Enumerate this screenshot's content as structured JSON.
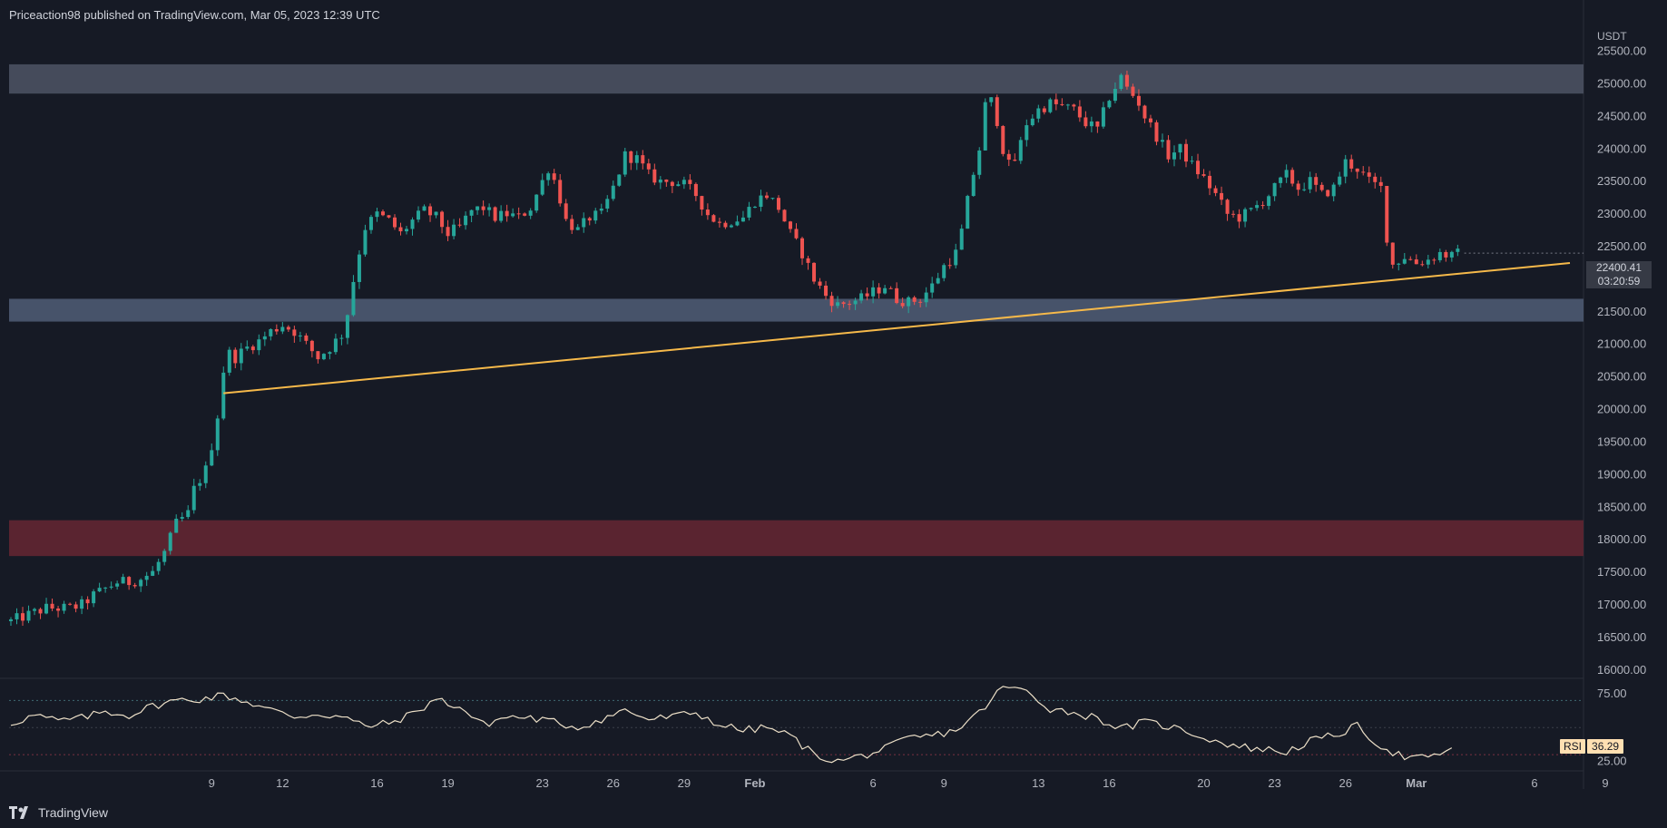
{
  "header": {
    "publisher": "Priceaction98 published on TradingView.com, Mar 05, 2023 12:39 UTC"
  },
  "footer": {
    "brand": "TradingView"
  },
  "price_axis": {
    "unit": "USDT",
    "ticks": [
      "25500.00",
      "25000.00",
      "24500.00",
      "24000.00",
      "23500.00",
      "23000.00",
      "22500.00",
      "22000.00",
      "21500.00",
      "21000.00",
      "20500.00",
      "20000.00",
      "19500.00",
      "19000.00",
      "18500.00",
      "18000.00",
      "17500.00",
      "17000.00",
      "16500.00",
      "16000.00"
    ],
    "current_price": "22400.41",
    "countdown": "03:20:59"
  },
  "rsi_axis": {
    "name": "RSI",
    "value": "36.29",
    "ticks": [
      "75.00",
      "25.00"
    ]
  },
  "time_axis": {
    "labels": [
      "9",
      "12",
      "16",
      "19",
      "23",
      "26",
      "29",
      "Feb",
      "6",
      "9",
      "13",
      "16",
      "20",
      "23",
      "26",
      "Mar",
      "6",
      "9"
    ]
  },
  "colors": {
    "background": "#161a25",
    "up_candle": "#26a69a",
    "down_candle": "#ef5350",
    "trendline": "#f6b94a",
    "resistance_zone": "#4a5162",
    "support_zone": "#4d5a72",
    "demand_zone": "#5e2530",
    "rsi_line": "#ede0c8"
  },
  "chart_data": [
    {
      "type": "candlestick",
      "xlabel": "",
      "ylabel": "",
      "ylim": [
        15900,
        25800
      ],
      "x_range_days": [
        0,
        66
      ],
      "x_ticks": [
        {
          "day": 8.5,
          "label": "9"
        },
        {
          "day": 11.5,
          "label": "12"
        },
        {
          "day": 15.5,
          "label": "16"
        },
        {
          "day": 18.5,
          "label": "19"
        },
        {
          "day": 22.5,
          "label": "23"
        },
        {
          "day": 25.5,
          "label": "26"
        },
        {
          "day": 28.5,
          "label": "29"
        },
        {
          "day": 31.5,
          "label": "Feb"
        },
        {
          "day": 36.5,
          "label": "6"
        },
        {
          "day": 39.5,
          "label": "9"
        },
        {
          "day": 43.5,
          "label": "13"
        },
        {
          "day": 46.5,
          "label": "16"
        },
        {
          "day": 50.5,
          "label": "20"
        },
        {
          "day": 53.5,
          "label": "23"
        },
        {
          "day": 56.5,
          "label": "26"
        },
        {
          "day": 59.5,
          "label": "Mar"
        },
        {
          "day": 64.5,
          "label": "6"
        },
        {
          "day": 67.5,
          "label": "9"
        }
      ],
      "path_points": [
        [
          0,
          16750
        ],
        [
          1.5,
          16950
        ],
        [
          2.5,
          16950
        ],
        [
          3,
          17000
        ],
        [
          3.5,
          17150
        ],
        [
          4.5,
          17350
        ],
        [
          5,
          17350
        ],
        [
          5.5,
          17400
        ],
        [
          6,
          17500
        ],
        [
          6.5,
          17800
        ],
        [
          7,
          18250
        ],
        [
          7.5,
          18400
        ],
        [
          7.8,
          18850
        ],
        [
          8.2,
          19000
        ],
        [
          8.5,
          19450
        ],
        [
          8.8,
          20000
        ],
        [
          9.1,
          20900
        ],
        [
          9.5,
          20800
        ],
        [
          10,
          20950
        ],
        [
          10.5,
          21050
        ],
        [
          11,
          21200
        ],
        [
          11.5,
          21300
        ],
        [
          12,
          21200
        ],
        [
          12.5,
          21000
        ],
        [
          13,
          20800
        ],
        [
          13.5,
          20950
        ],
        [
          14,
          21150
        ],
        [
          14.3,
          21550
        ],
        [
          14.6,
          22200
        ],
        [
          15,
          22800
        ],
        [
          15.5,
          23000
        ],
        [
          16,
          22900
        ],
        [
          16.5,
          22700
        ],
        [
          17,
          22900
        ],
        [
          17.5,
          23050
        ],
        [
          18,
          22950
        ],
        [
          18.5,
          22700
        ],
        [
          19,
          22800
        ],
        [
          19.5,
          23050
        ],
        [
          20,
          23100
        ],
        [
          20.5,
          22950
        ],
        [
          21,
          23000
        ],
        [
          21.5,
          22950
        ],
        [
          22,
          23100
        ],
        [
          22.5,
          23500
        ],
        [
          22.8,
          23750
        ],
        [
          23.2,
          23300
        ],
        [
          23.5,
          22900
        ],
        [
          24,
          22750
        ],
        [
          24.5,
          22950
        ],
        [
          25,
          23000
        ],
        [
          25.5,
          23400
        ],
        [
          26,
          23900
        ],
        [
          26.5,
          23850
        ],
        [
          27,
          23600
        ],
        [
          27.5,
          23500
        ],
        [
          28,
          23500
        ],
        [
          28.5,
          23450
        ],
        [
          29,
          23300
        ],
        [
          29.5,
          23000
        ],
        [
          30,
          22850
        ],
        [
          30.5,
          22900
        ],
        [
          31,
          22950
        ],
        [
          31.5,
          23200
        ],
        [
          32,
          23300
        ],
        [
          32.5,
          23100
        ],
        [
          33,
          22700
        ],
        [
          33.5,
          22400
        ],
        [
          34,
          22000
        ],
        [
          34.5,
          21750
        ],
        [
          35,
          21600
        ],
        [
          35.5,
          21650
        ],
        [
          36,
          21700
        ],
        [
          36.5,
          21800
        ],
        [
          37,
          21900
        ],
        [
          37.5,
          21700
        ],
        [
          38,
          21650
        ],
        [
          38.5,
          21700
        ],
        [
          39,
          21900
        ],
        [
          39.5,
          22200
        ],
        [
          40,
          22400
        ],
        [
          40.3,
          22800
        ],
        [
          40.6,
          23400
        ],
        [
          41,
          24000
        ],
        [
          41.3,
          24800
        ],
        [
          41.6,
          24700
        ],
        [
          42,
          24000
        ],
        [
          42.3,
          23700
        ],
        [
          42.6,
          23900
        ],
        [
          43,
          24400
        ],
        [
          43.5,
          24600
        ],
        [
          44,
          24700
        ],
        [
          44.5,
          24650
        ],
        [
          45,
          24600
        ],
        [
          45.5,
          24400
        ],
        [
          46,
          24300
        ],
        [
          46.5,
          24800
        ],
        [
          47,
          25100
        ],
        [
          47.3,
          24900
        ],
        [
          47.7,
          24750
        ],
        [
          48,
          24500
        ],
        [
          48.5,
          24200
        ],
        [
          49,
          23900
        ],
        [
          49.5,
          24000
        ],
        [
          50,
          23750
        ],
        [
          50.5,
          23550
        ],
        [
          51,
          23300
        ],
        [
          51.5,
          23000
        ],
        [
          52,
          22950
        ],
        [
          52.5,
          23050
        ],
        [
          53,
          23200
        ],
        [
          53.5,
          23400
        ],
        [
          54,
          23600
        ],
        [
          54.5,
          23400
        ],
        [
          55,
          23500
        ],
        [
          55.5,
          23300
        ],
        [
          56,
          23400
        ],
        [
          56.5,
          23800
        ],
        [
          57,
          23700
        ],
        [
          57.5,
          23500
        ],
        [
          58,
          23400
        ],
        [
          58.2,
          22800
        ],
        [
          58.4,
          22200
        ],
        [
          59,
          22350
        ],
        [
          59.5,
          22250
        ],
        [
          60,
          22300
        ],
        [
          60.5,
          22400
        ],
        [
          61,
          22350
        ],
        [
          61.3,
          22400
        ]
      ],
      "zones": [
        {
          "name": "resistance",
          "low": 24850,
          "high": 25300
        },
        {
          "name": "support",
          "low": 21350,
          "high": 21700
        },
        {
          "name": "demand",
          "low": 17750,
          "high": 18300
        }
      ],
      "trendline": {
        "from": [
          9,
          20250
        ],
        "to": [
          66,
          22250
        ]
      },
      "current_price": 22400.41
    },
    {
      "type": "line",
      "name": "RSI",
      "ylim": [
        20,
        85
      ],
      "levels": [
        70,
        50,
        30
      ],
      "x": [
        0,
        1,
        2,
        3,
        4,
        5,
        6,
        7,
        8,
        9,
        10,
        11,
        12,
        13,
        14,
        15,
        16,
        17,
        18,
        19,
        20,
        21,
        22,
        23,
        24,
        25,
        26,
        27,
        28,
        29,
        30,
        31,
        32,
        33,
        34,
        35,
        36,
        37,
        38,
        39,
        40,
        41,
        42,
        43,
        44,
        45,
        46,
        47,
        48,
        49,
        50,
        51,
        52,
        53,
        54,
        55,
        56,
        57,
        58,
        59,
        60,
        61
      ],
      "values": [
        53,
        59,
        55,
        57,
        62,
        59,
        66,
        70,
        71,
        74,
        69,
        63,
        58,
        60,
        58,
        51,
        53,
        60,
        71,
        65,
        52,
        58,
        57,
        54,
        50,
        56,
        63,
        56,
        58,
        61,
        52,
        48,
        50,
        44,
        30,
        25,
        29,
        34,
        42,
        44,
        48,
        61,
        80,
        77,
        64,
        61,
        57,
        49,
        54,
        51,
        46,
        40,
        36,
        34,
        32,
        40,
        44,
        51,
        36,
        28,
        27,
        35
      ]
    }
  ]
}
